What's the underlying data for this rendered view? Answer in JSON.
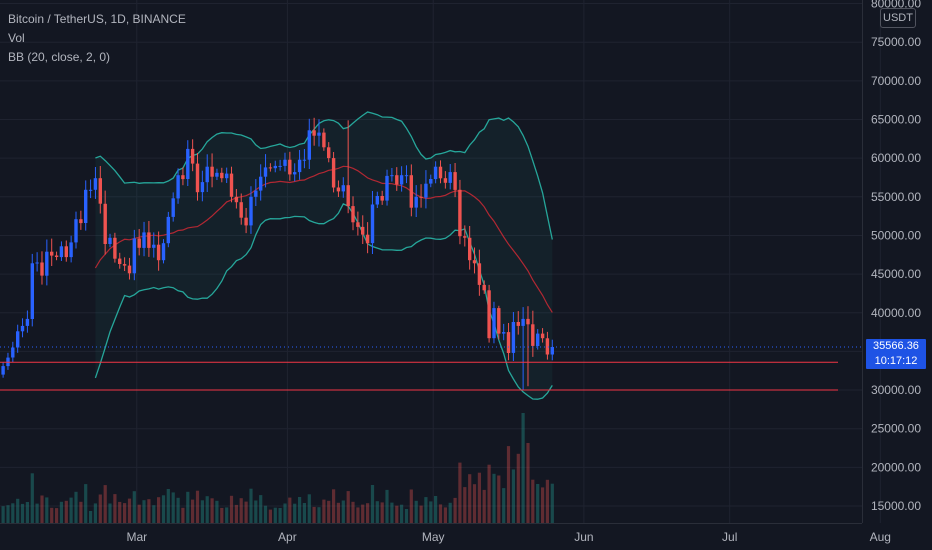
{
  "legend": {
    "symbol": "Bitcoin / TetherUS, 1D, BINANCE",
    "vol": "Vol",
    "bb": "BB (20, close, 2, 0)"
  },
  "currency_badge": "USDT",
  "last_price": "35566.36",
  "countdown": "10:17:12",
  "colors": {
    "background": "#131722",
    "up": "#2962ff",
    "down": "#ef5350",
    "band": "#26a69a",
    "basis": "#b22833",
    "hline": "#f23645",
    "price_tag": "#1e53e5"
  },
  "chart_data": {
    "type": "candlestick",
    "title": "Bitcoin / TetherUS, 1D, BINANCE",
    "y_axis_ticks": [
      "80000.00",
      "75000.00",
      "70000.00",
      "65000.00",
      "60000.00",
      "55000.00",
      "50000.00",
      "45000.00",
      "40000.00",
      "35000.00",
      "30000.00",
      "25000.00",
      "20000.00",
      "15000.00"
    ],
    "x_axis_ticks": [
      "Mar",
      "Apr",
      "May",
      "Jun",
      "Jul",
      "Aug"
    ],
    "ylim": [
      13500,
      81000
    ],
    "start_date": "2021-02-01",
    "close": [
      33100,
      34200,
      35500,
      37600,
      38300,
      39200,
      46400,
      46500,
      44800,
      47900,
      47400,
      47200,
      48600,
      47200,
      49100,
      52100,
      51600,
      55900,
      55900,
      57400,
      54100,
      48900,
      49700,
      47000,
      46300,
      46100,
      45100,
      49600,
      48400,
      50400,
      48400,
      48800,
      46800,
      49000,
      52400,
      54800,
      57800,
      57300,
      61200,
      59300,
      55600,
      56900,
      58900,
      57600,
      58100,
      57400,
      58000,
      55000,
      54300,
      52300,
      51300,
      55000,
      55800,
      57600,
      58800,
      58700,
      59000,
      59000,
      59800,
      57900,
      58200,
      59800,
      59800,
      63600,
      62900,
      63300,
      61400,
      60000,
      56200,
      55700,
      56500,
      53800,
      51700,
      51100,
      50100,
      49000,
      54000,
      55100,
      54500,
      57700,
      57800,
      56600,
      57800,
      57800,
      53600,
      55000,
      54900,
      56700,
      57300,
      58900,
      57400,
      56800,
      58200,
      55900,
      49900,
      49700,
      46800,
      46400,
      43600,
      42900,
      36700,
      40600,
      37300,
      37500,
      34800,
      38800,
      38300,
      39200,
      38500,
      35700,
      37300,
      36700,
      34600,
      35566
    ],
    "volume_estimated": true,
    "bollinger": {
      "length": 20,
      "source": "close",
      "mult": 2,
      "offset": 0
    },
    "horizontal_lines": [
      33600,
      30000
    ],
    "last_price": 35566.36
  }
}
